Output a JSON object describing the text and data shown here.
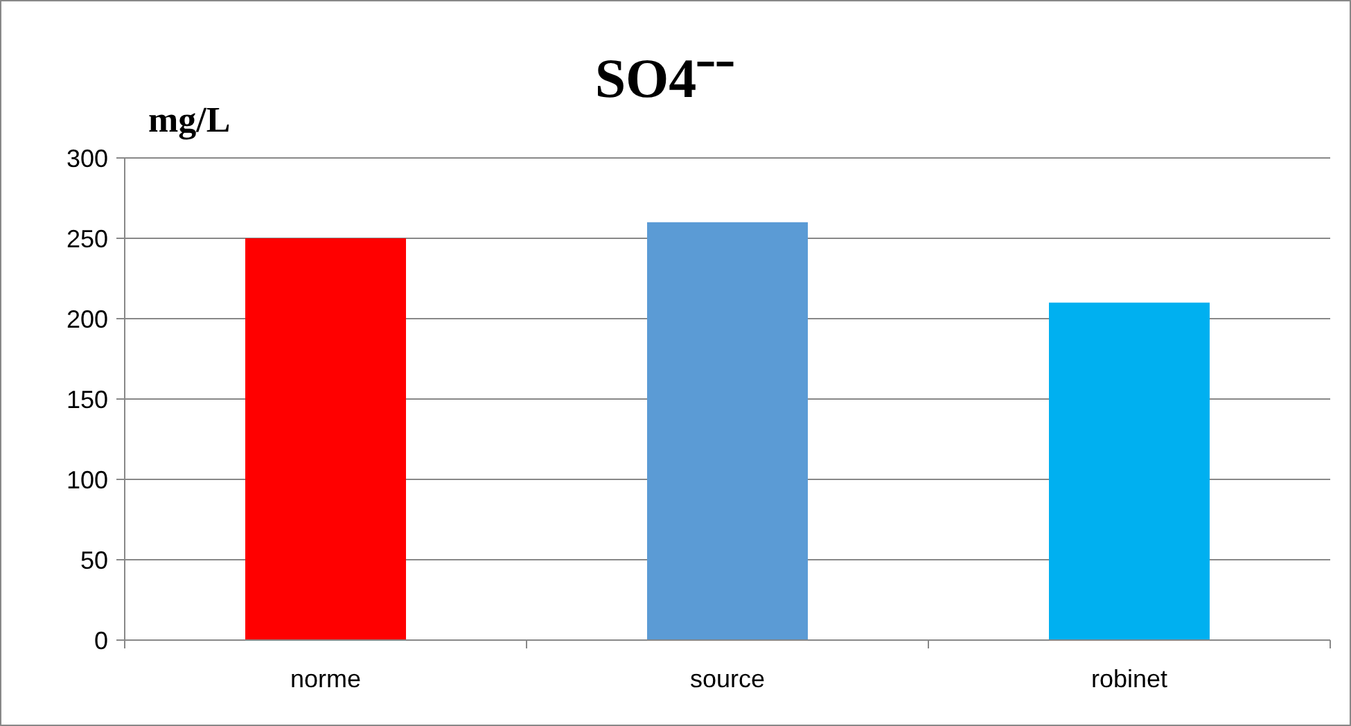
{
  "chart_data": {
    "type": "bar",
    "title": "SO4⁻⁻",
    "ylabel": "mg/L",
    "categories": [
      "norme",
      "source",
      "robinet"
    ],
    "values": [
      250,
      260,
      210
    ],
    "colors": [
      "#ff0000",
      "#5b9bd5",
      "#00b0f0"
    ],
    "ylim": [
      0,
      300
    ],
    "yticks": [
      0,
      50,
      100,
      150,
      200,
      250,
      300
    ],
    "grid": "y"
  }
}
